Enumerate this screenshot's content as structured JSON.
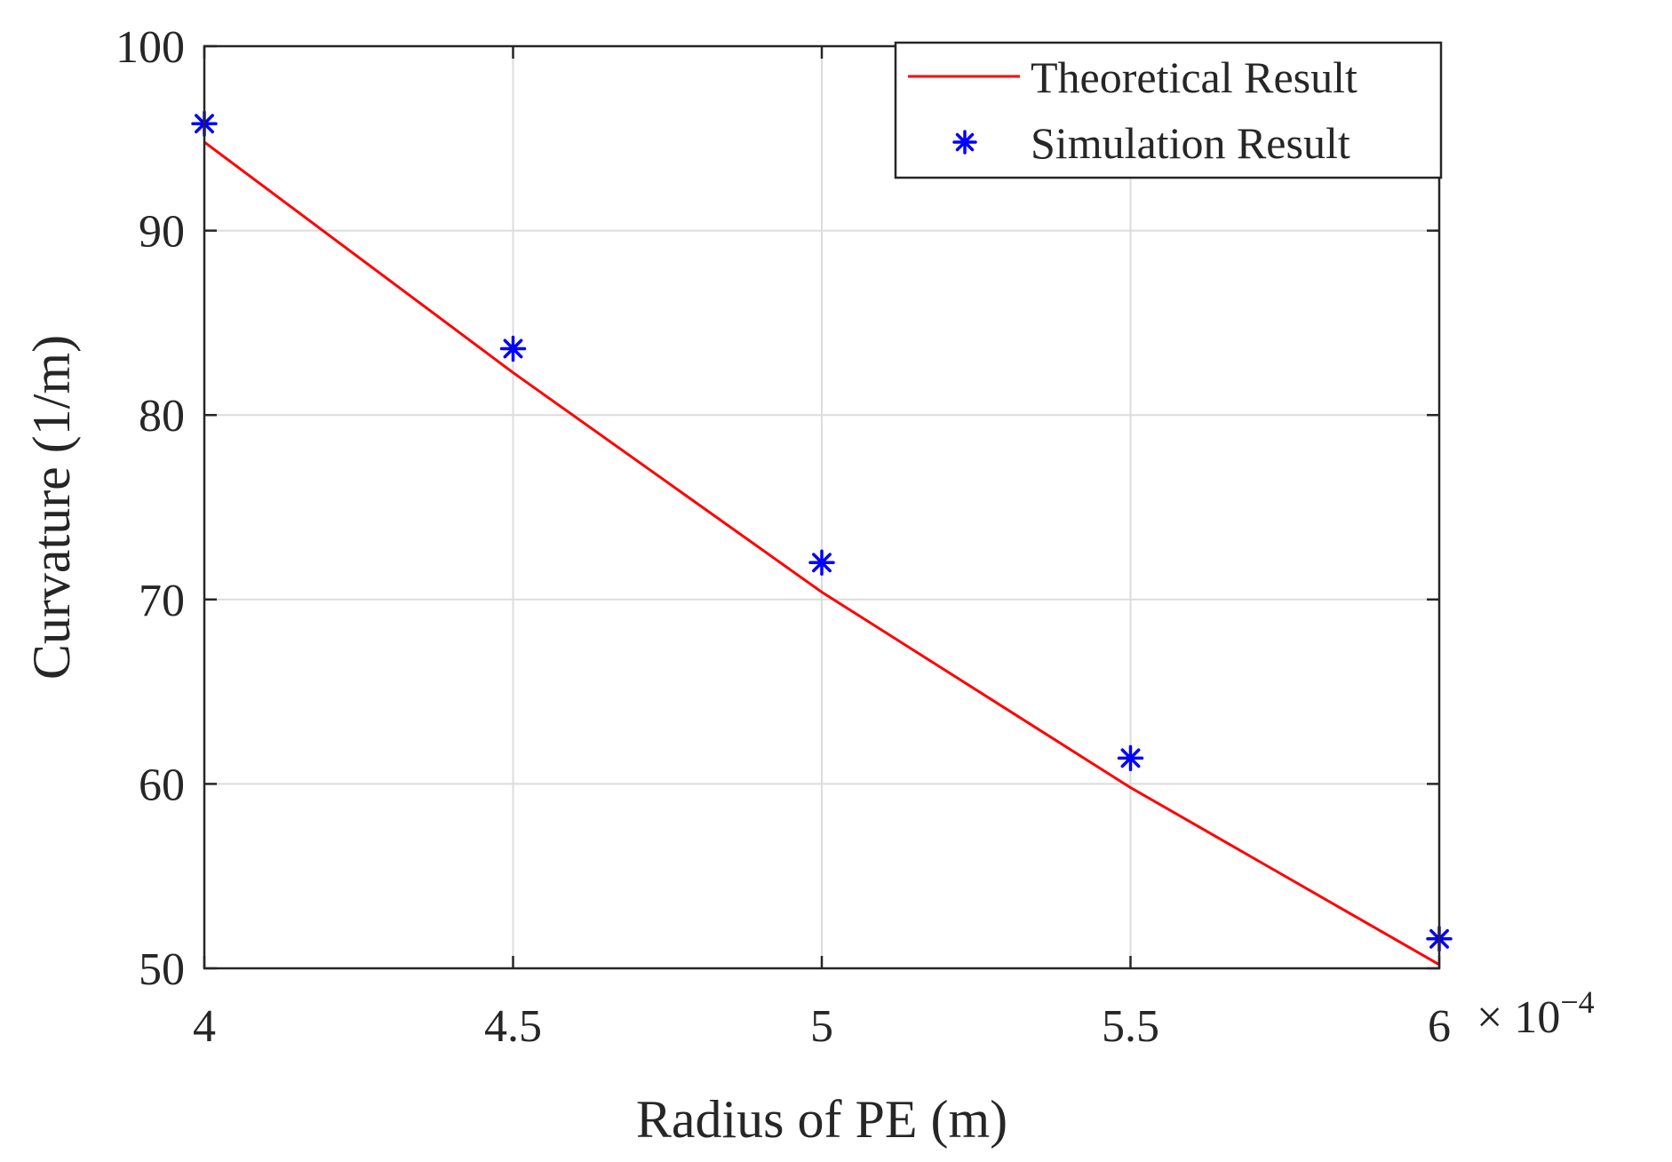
{
  "chart_data": {
    "type": "line",
    "title": "",
    "xlabel": "Radius of PE (m)",
    "ylabel": "Curvature (1/m)",
    "xlim": [
      4,
      6
    ],
    "ylim": [
      50,
      100
    ],
    "x_multiplier_base": "× 10",
    "x_multiplier_exponent": "−4",
    "x_ticks": [
      4,
      4.5,
      5,
      5.5,
      6
    ],
    "x_tick_labels": [
      "4",
      "4.5",
      "5",
      "5.5",
      "6"
    ],
    "y_ticks": [
      50,
      60,
      70,
      80,
      90,
      100
    ],
    "y_tick_labels": [
      "50",
      "60",
      "70",
      "80",
      "90",
      "100"
    ],
    "grid": true,
    "legend_position": "top-right",
    "series": [
      {
        "name": "Theoretical Result",
        "style": "line",
        "color": "#ff0000",
        "x": [
          4,
          4.5,
          5,
          5.5,
          6
        ],
        "y": [
          94.8,
          82.3,
          70.4,
          59.8,
          50.2
        ]
      },
      {
        "name": "Simulation Result",
        "style": "marker-asterisk",
        "color": "#0000ff",
        "x": [
          4,
          4.5,
          5,
          5.5,
          6
        ],
        "y": [
          95.8,
          83.6,
          72.0,
          61.4,
          51.6
        ]
      }
    ]
  }
}
